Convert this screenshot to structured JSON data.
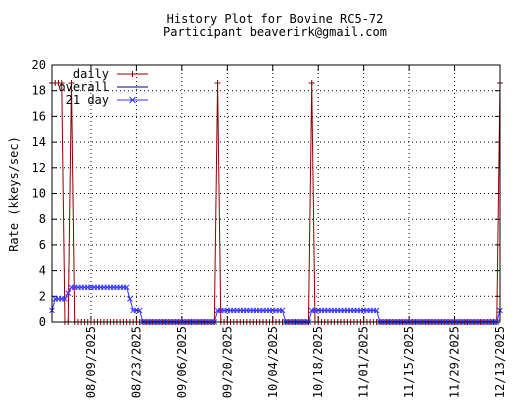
{
  "chart_data": {
    "type": "line",
    "title": "History Plot for Bovine RC5-72",
    "subtitle": "Participant beaverirk@gmail.com",
    "ylabel": "Rate (kkeys/sec)",
    "xlabel": "",
    "ylim": [
      0,
      20
    ],
    "yticks": [
      "0",
      "2",
      "4",
      "6",
      "8",
      "10",
      "12",
      "14",
      "16",
      "18",
      "20"
    ],
    "xlim": [
      "2025-07-28",
      "2025-12-13"
    ],
    "xticks": [
      "08/09/2025",
      "08/23/2025",
      "09/06/2025",
      "09/20/2025",
      "10/04/2025",
      "10/18/2025",
      "11/01/2025",
      "11/15/2025",
      "11/29/2025",
      "12/13/2025"
    ],
    "grid": true,
    "legend_position": "top-left",
    "colors": {
      "daily": "#8b0000",
      "overall": "#000080",
      "21day": "#3333ff"
    },
    "series": [
      {
        "name": "daily",
        "marker": "plus",
        "daily_default": 0,
        "points": [
          {
            "date": "2025-07-28",
            "value": 18.6
          },
          {
            "date": "2025-07-29",
            "value": 18.6
          },
          {
            "date": "2025-07-30",
            "value": 18.6
          },
          {
            "date": "2025-07-31",
            "value": 18.6
          },
          {
            "date": "2025-08-03",
            "value": 18.6
          },
          {
            "date": "2025-09-17",
            "value": 18.6
          },
          {
            "date": "2025-10-16",
            "value": 18.6
          },
          {
            "date": "2025-12-13",
            "value": 18.6
          }
        ]
      },
      {
        "name": "overall",
        "marker": "none",
        "points": []
      },
      {
        "name": "21 day",
        "marker": "x",
        "points": [
          {
            "date": "2025-07-28",
            "value": 0.9
          },
          {
            "date": "2025-07-29",
            "value": 1.8
          },
          {
            "date": "2025-08-01",
            "value": 1.8
          },
          {
            "date": "2025-08-03",
            "value": 2.7
          },
          {
            "date": "2025-08-20",
            "value": 2.7
          },
          {
            "date": "2025-08-21",
            "value": 1.8
          },
          {
            "date": "2025-08-22",
            "value": 0.9
          },
          {
            "date": "2025-08-24",
            "value": 0.9
          },
          {
            "date": "2025-08-25",
            "value": 0.0
          },
          {
            "date": "2025-09-16",
            "value": 0.0
          },
          {
            "date": "2025-09-17",
            "value": 0.9
          },
          {
            "date": "2025-10-07",
            "value": 0.9
          },
          {
            "date": "2025-10-08",
            "value": 0.0
          },
          {
            "date": "2025-10-15",
            "value": 0.0
          },
          {
            "date": "2025-10-16",
            "value": 0.9
          },
          {
            "date": "2025-11-05",
            "value": 0.9
          },
          {
            "date": "2025-11-06",
            "value": 0.0
          },
          {
            "date": "2025-12-12",
            "value": 0.0
          },
          {
            "date": "2025-12-13",
            "value": 0.9
          }
        ]
      }
    ]
  }
}
